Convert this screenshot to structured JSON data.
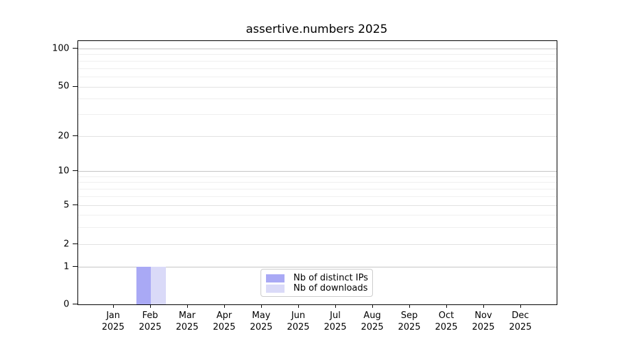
{
  "title": "assertive.numbers 2025",
  "chart_data": {
    "type": "bar",
    "title": "assertive.numbers 2025",
    "categories": [
      "Jan",
      "Feb",
      "Mar",
      "Apr",
      "May",
      "Jun",
      "Jul",
      "Aug",
      "Sep",
      "Oct",
      "Nov",
      "Dec"
    ],
    "category_year": "2025",
    "series": [
      {
        "name": "Nb of distinct IPs",
        "color": "#a9a9f5",
        "values": [
          0,
          1,
          0,
          0,
          0,
          0,
          0,
          0,
          0,
          0,
          0,
          0
        ]
      },
      {
        "name": "Nb of downloads",
        "color": "#dadaf8",
        "values": [
          0,
          1,
          0,
          0,
          0,
          0,
          0,
          0,
          0,
          0,
          0,
          0
        ]
      }
    ],
    "xlabel": "",
    "ylabel": "",
    "yticks": [
      0,
      1,
      2,
      5,
      10,
      20,
      50,
      100
    ],
    "minor_yticks": [
      3,
      4,
      6,
      7,
      8,
      9,
      30,
      40,
      60,
      70,
      80,
      90
    ],
    "ylim": [
      0,
      115
    ],
    "yscale": "symlog",
    "grid": "horizontal",
    "legend_position": "lower center",
    "axis_color": "#000000",
    "grid_major_color": "#c4c4c4",
    "grid_minor_color": "#efefef"
  }
}
